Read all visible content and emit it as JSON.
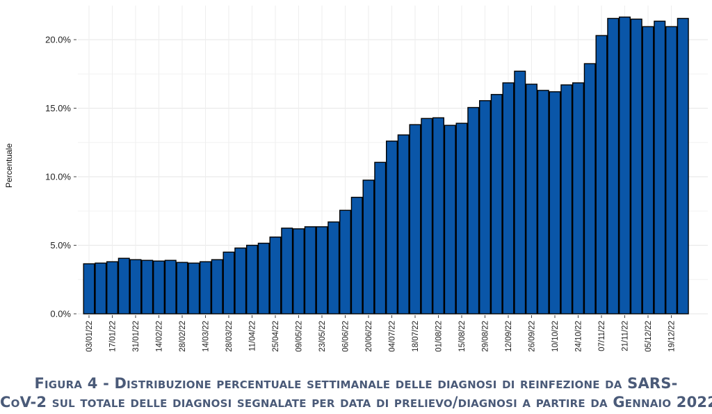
{
  "chart_data": {
    "type": "bar",
    "title": "",
    "xlabel": "",
    "ylabel": "Percentuale",
    "ylim": [
      0,
      0.205
    ],
    "y_ticks": [
      0,
      0.05,
      0.1,
      0.15,
      0.2
    ],
    "y_tick_labels": [
      "0.0%",
      "5.0%",
      "10.0%",
      "15.0%",
      "20.0%"
    ],
    "x_tick_labels": [
      "03/01/22",
      "17/01/22",
      "31/01/22",
      "14/02/22",
      "28/02/22",
      "14/03/22",
      "28/03/22",
      "11/04/22",
      "25/04/22",
      "09/05/22",
      "23/05/22",
      "06/06/22",
      "20/06/22",
      "04/07/22",
      "18/07/22",
      "01/08/22",
      "15/08/22",
      "29/08/22",
      "12/09/22",
      "26/09/22",
      "10/10/22",
      "24/10/22",
      "07/11/22",
      "21/11/22",
      "05/12/22",
      "19/12/22"
    ],
    "values": [
      0.0365,
      0.037,
      0.038,
      0.0405,
      0.0395,
      0.039,
      0.0385,
      0.039,
      0.0375,
      0.037,
      0.038,
      0.0395,
      0.045,
      0.048,
      0.05,
      0.0515,
      0.056,
      0.0625,
      0.062,
      0.0635,
      0.0635,
      0.067,
      0.0755,
      0.085,
      0.0975,
      0.1105,
      0.126,
      0.1305,
      0.138,
      0.1425,
      0.143,
      0.1375,
      0.139,
      0.1505,
      0.1555,
      0.16,
      0.1685,
      0.177,
      0.1675,
      0.163,
      0.162,
      0.167,
      0.1685,
      0.1825,
      0.203,
      0.2155,
      0.2165,
      0.215,
      0.2095,
      0.2135,
      0.2095,
      0.2155
    ],
    "bar_color": "#0a56a8",
    "grid": true
  },
  "caption": {
    "line1": "Figura 4 - Distribuzione percentuale settimanale delle diagnosi di reinfezione da SARS-",
    "line2": "CoV-2 sul totale delle diagnosi segnalate per data di prelievo/diagnosi a partire da Gennaio 2022"
  }
}
